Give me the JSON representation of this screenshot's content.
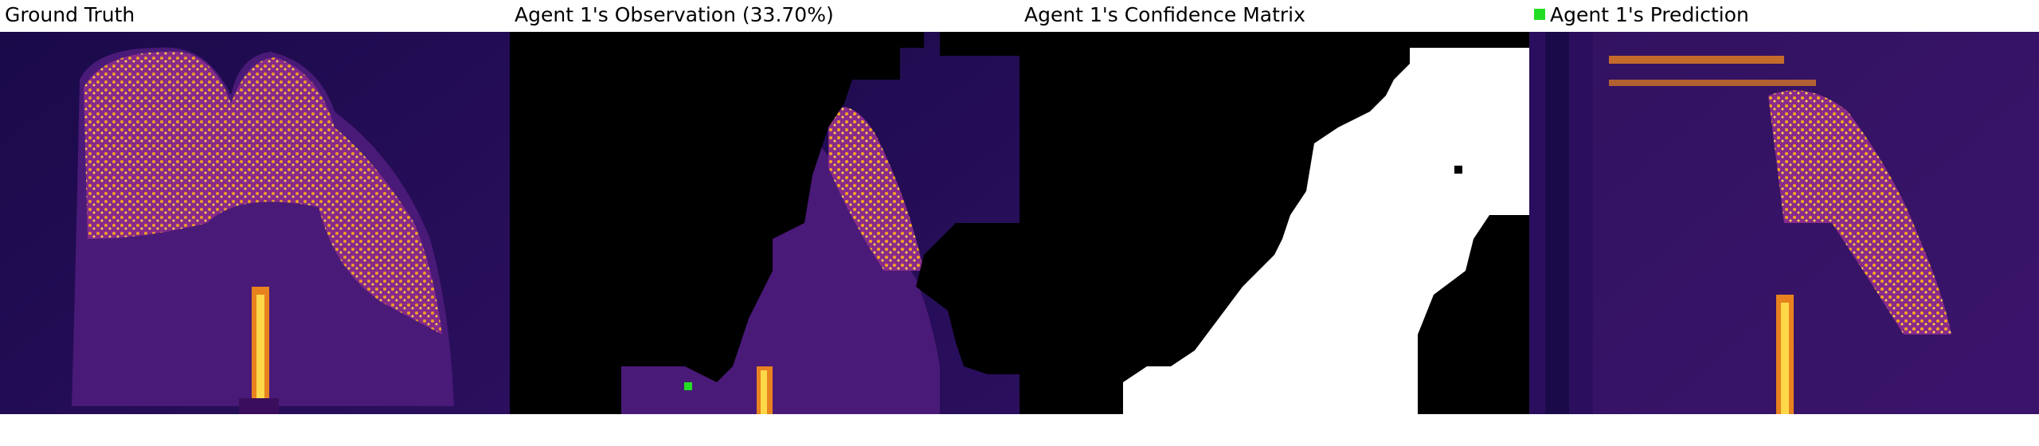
{
  "panels": [
    {
      "title": "Ground Truth"
    },
    {
      "title": "Agent 1's Observation (33.70%)"
    },
    {
      "title": "Agent 1's Confidence Matrix"
    },
    {
      "title": "Agent 1's Prediction"
    }
  ],
  "colors": {
    "background": "#1a0a4a",
    "mid": "#5a1f8c",
    "hot": "#e8821e",
    "hottest": "#ffd84a",
    "mask": "#000000",
    "confident": "#ffffff",
    "agent_marker": "#22dd22"
  },
  "legend": {
    "marker": "green-square"
  }
}
